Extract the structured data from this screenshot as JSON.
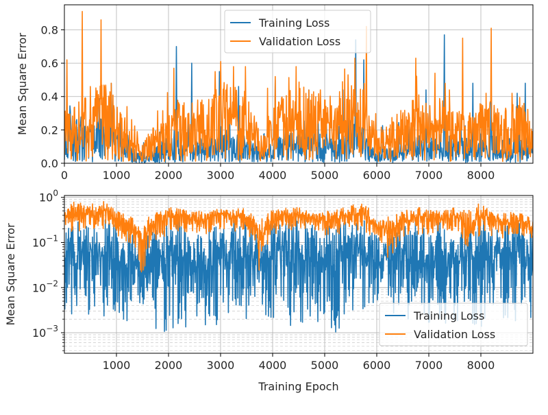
{
  "chart_data": [
    {
      "type": "line",
      "ylabel": "Mean Square Error",
      "xlabel": "",
      "xlim": [
        0,
        9000
      ],
      "ylim": [
        0,
        0.95
      ],
      "yscale": "linear",
      "x_ticks": [
        0,
        1000,
        2000,
        3000,
        4000,
        5000,
        6000,
        7000,
        8000
      ],
      "x_tick_labels": [
        "0",
        "1000",
        "2000",
        "3000",
        "4000",
        "5000",
        "6000",
        "7000",
        "8000"
      ],
      "y_ticks": [
        0.0,
        0.2,
        0.4,
        0.6,
        0.8
      ],
      "y_tick_labels": [
        "0.0",
        "0.2",
        "0.4",
        "0.6",
        "0.8"
      ],
      "grid": true,
      "legend": "top-center",
      "series": [
        {
          "name": "Training Loss",
          "color": "#1f77b4",
          "x": [
            0,
            250,
            500,
            750,
            1000,
            1250,
            1500,
            1750,
            2000,
            2250,
            2500,
            2750,
            3000,
            3250,
            3500,
            3750,
            4000,
            4250,
            4500,
            4750,
            5000,
            5250,
            5500,
            5750,
            6000,
            6250,
            6500,
            6750,
            7000,
            7250,
            7500,
            7750,
            8000,
            8250,
            8500,
            8750,
            9000
          ],
          "values": [
            0.12,
            0.18,
            0.15,
            0.2,
            0.12,
            0.08,
            0.02,
            0.06,
            0.1,
            0.12,
            0.09,
            0.1,
            0.11,
            0.12,
            0.1,
            0.05,
            0.08,
            0.12,
            0.14,
            0.13,
            0.1,
            0.09,
            0.16,
            0.12,
            0.04,
            0.06,
            0.08,
            0.1,
            0.09,
            0.11,
            0.1,
            0.09,
            0.12,
            0.1,
            0.09,
            0.1,
            0.08
          ],
          "peaks": [
            [
              900,
              0.48
            ],
            [
              2150,
              0.7
            ],
            [
              2450,
              0.6
            ],
            [
              2980,
              0.55
            ],
            [
              3350,
              0.46
            ],
            [
              4050,
              0.5
            ],
            [
              4700,
              0.44
            ],
            [
              5350,
              0.44
            ],
            [
              5600,
              0.74
            ],
            [
              5750,
              0.62
            ],
            [
              6950,
              0.44
            ],
            [
              7300,
              0.77
            ],
            [
              7850,
              0.48
            ],
            [
              8200,
              0.48
            ],
            [
              8700,
              0.42
            ],
            [
              8850,
              0.48
            ]
          ]
        },
        {
          "name": "Validation Loss",
          "color": "#ff7f0e",
          "x": [
            0,
            250,
            500,
            750,
            1000,
            1250,
            1500,
            1750,
            2000,
            2250,
            2500,
            2750,
            3000,
            3250,
            3500,
            3750,
            4000,
            4250,
            4500,
            4750,
            5000,
            5250,
            5500,
            5750,
            6000,
            6250,
            6500,
            6750,
            7000,
            7250,
            7500,
            7750,
            8000,
            8250,
            8500,
            8750,
            9000
          ],
          "values": [
            0.2,
            0.24,
            0.26,
            0.3,
            0.23,
            0.18,
            0.08,
            0.14,
            0.2,
            0.24,
            0.22,
            0.24,
            0.3,
            0.28,
            0.26,
            0.12,
            0.2,
            0.26,
            0.3,
            0.28,
            0.24,
            0.26,
            0.3,
            0.26,
            0.12,
            0.16,
            0.2,
            0.24,
            0.22,
            0.24,
            0.22,
            0.18,
            0.26,
            0.22,
            0.2,
            0.24,
            0.18
          ],
          "peaks": [
            [
              50,
              0.62
            ],
            [
              340,
              0.91
            ],
            [
              500,
              0.46
            ],
            [
              700,
              0.86
            ],
            [
              900,
              0.48
            ],
            [
              1200,
              0.34
            ],
            [
              2100,
              0.57
            ],
            [
              2900,
              0.55
            ],
            [
              3000,
              0.61
            ],
            [
              3250,
              0.58
            ],
            [
              3480,
              0.58
            ],
            [
              3900,
              0.45
            ],
            [
              4050,
              0.52
            ],
            [
              4450,
              0.58
            ],
            [
              4920,
              0.44
            ],
            [
              5450,
              0.53
            ],
            [
              5580,
              0.63
            ],
            [
              5800,
              0.82
            ],
            [
              6750,
              0.63
            ],
            [
              7120,
              0.54
            ],
            [
              7400,
              0.44
            ],
            [
              7650,
              0.75
            ],
            [
              7900,
              0.3
            ],
            [
              8200,
              0.81
            ],
            [
              8600,
              0.42
            ]
          ]
        }
      ]
    },
    {
      "type": "line",
      "ylabel": "Mean Square Error",
      "xlabel": "Training Epoch",
      "xlim": [
        0,
        9000
      ],
      "ylim": [
        0.00035,
        1.1
      ],
      "yscale": "log",
      "x_ticks": [
        1000,
        2000,
        3000,
        4000,
        5000,
        6000,
        7000,
        8000
      ],
      "x_tick_labels": [
        "1000",
        "2000",
        "3000",
        "4000",
        "5000",
        "6000",
        "7000",
        "8000"
      ],
      "y_ticks": [
        0.001,
        0.01,
        0.1,
        1
      ],
      "y_tick_base": "10",
      "y_tick_exponents": [
        "−3",
        "−2",
        "−1",
        "0"
      ],
      "grid": true,
      "legend": "bottom-right",
      "series": [
        {
          "name": "Training Loss",
          "color": "#1f77b4",
          "x": [
            0,
            250,
            500,
            750,
            1000,
            1250,
            1500,
            1750,
            2000,
            2250,
            2500,
            2750,
            3000,
            3250,
            3500,
            3750,
            4000,
            4250,
            4500,
            4750,
            5000,
            5250,
            5500,
            5750,
            6000,
            6250,
            6500,
            6750,
            7000,
            7250,
            7500,
            7750,
            8000,
            8250,
            8500,
            8750,
            9000
          ],
          "upper": [
            0.25,
            0.3,
            0.3,
            0.35,
            0.25,
            0.2,
            0.1,
            0.2,
            0.3,
            0.35,
            0.3,
            0.3,
            0.35,
            0.35,
            0.3,
            0.15,
            0.3,
            0.35,
            0.4,
            0.35,
            0.3,
            0.3,
            0.4,
            0.35,
            0.15,
            0.2,
            0.25,
            0.3,
            0.3,
            0.35,
            0.3,
            0.25,
            0.35,
            0.3,
            0.3,
            0.3,
            0.2
          ],
          "lower": [
            0.003,
            0.002,
            0.002,
            0.0015,
            0.002,
            0.0015,
            0.003,
            0.0008,
            0.001,
            0.0012,
            0.0015,
            0.001,
            0.0012,
            0.002,
            0.0015,
            0.003,
            0.001,
            0.0012,
            0.0015,
            0.0012,
            0.001,
            0.0008,
            0.003,
            0.0015,
            0.005,
            0.003,
            0.002,
            0.002,
            0.001,
            0.0015,
            0.0012,
            0.002,
            0.001,
            0.002,
            0.0015,
            0.002,
            0.002
          ]
        },
        {
          "name": "Validation Loss",
          "color": "#ff7f0e",
          "x": [
            0,
            250,
            500,
            750,
            1000,
            1250,
            1500,
            1750,
            2000,
            2250,
            2500,
            2750,
            3000,
            3250,
            3500,
            3750,
            4000,
            4250,
            4500,
            4750,
            5000,
            5250,
            5500,
            5750,
            6000,
            6250,
            6500,
            6750,
            7000,
            7250,
            7500,
            7750,
            8000,
            8250,
            8500,
            8750,
            9000
          ],
          "upper": [
            0.62,
            0.9,
            0.7,
            0.86,
            0.5,
            0.4,
            0.3,
            0.45,
            0.6,
            0.55,
            0.5,
            0.5,
            0.6,
            0.58,
            0.58,
            0.3,
            0.52,
            0.58,
            0.6,
            0.5,
            0.5,
            0.55,
            0.65,
            0.82,
            0.3,
            0.4,
            0.5,
            0.63,
            0.55,
            0.5,
            0.6,
            0.5,
            0.8,
            0.5,
            0.45,
            0.5,
            0.3
          ],
          "lower": [
            0.15,
            0.18,
            0.15,
            0.2,
            0.12,
            0.1,
            0.01,
            0.1,
            0.15,
            0.18,
            0.15,
            0.15,
            0.2,
            0.18,
            0.15,
            0.015,
            0.12,
            0.18,
            0.2,
            0.18,
            0.12,
            0.15,
            0.2,
            0.18,
            0.08,
            0.04,
            0.12,
            0.15,
            0.15,
            0.18,
            0.15,
            0.02,
            0.15,
            0.12,
            0.12,
            0.15,
            0.1
          ]
        }
      ]
    }
  ]
}
